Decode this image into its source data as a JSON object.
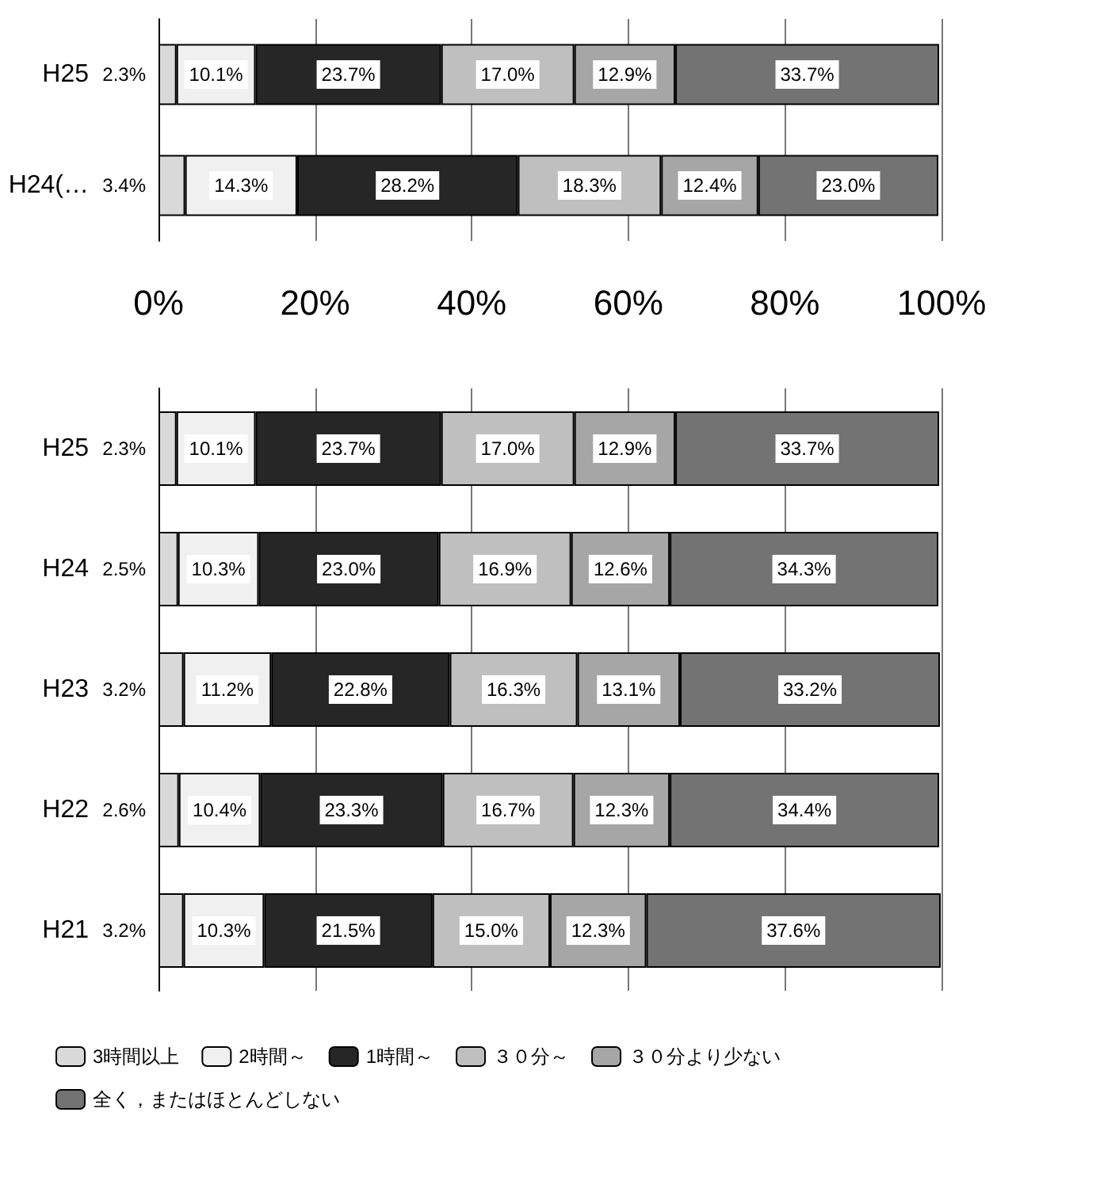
{
  "chart_data": [
    {
      "type": "bar",
      "orientation": "horizontal",
      "stacked": true,
      "categories": [
        "H25",
        "H24(…"
      ],
      "series": [
        {
          "color": "#d9d9d9",
          "values": [
            2.3,
            3.4
          ],
          "value_labels": [
            "2.3%",
            "3.4%"
          ]
        },
        {
          "color": "#f0f0f0",
          "values": [
            10.1,
            14.3
          ],
          "value_labels": [
            "10.1%",
            "14.3%"
          ]
        },
        {
          "color": "#262626",
          "values": [
            23.7,
            28.2
          ],
          "value_labels": [
            "23.7%",
            "28.2%"
          ]
        },
        {
          "color": "#bfbfbf",
          "values": [
            17.0,
            18.3
          ],
          "value_labels": [
            "17.0%",
            "18.3%"
          ]
        },
        {
          "color": "#a6a6a6",
          "values": [
            12.9,
            12.4
          ],
          "value_labels": [
            "12.9%",
            "12.4%"
          ]
        },
        {
          "color": "#737373",
          "values": [
            33.7,
            23.0
          ],
          "value_labels": [
            "33.7%",
            "23.0%"
          ]
        }
      ],
      "xlim": [
        0,
        100
      ],
      "xticks": [
        {
          "value": 0,
          "label": "0%"
        },
        {
          "value": 20,
          "label": "20%"
        },
        {
          "value": 40,
          "label": "40%"
        },
        {
          "value": 60,
          "label": "60%"
        },
        {
          "value": 80,
          "label": "80%"
        },
        {
          "value": 100,
          "label": "100%"
        }
      ],
      "grid": "x",
      "legend": false
    },
    {
      "type": "bar",
      "orientation": "horizontal",
      "stacked": true,
      "categories": [
        "H25",
        "H24",
        "H23",
        "H22",
        "H21"
      ],
      "series": [
        {
          "name": "3時間以上",
          "color": "#d9d9d9",
          "values": [
            2.3,
            2.5,
            3.2,
            2.6,
            3.2
          ],
          "value_labels": [
            "2.3%",
            "2.5%",
            "3.2%",
            "2.6%",
            "3.2%"
          ]
        },
        {
          "name": "2時間～",
          "color": "#f0f0f0",
          "values": [
            10.1,
            10.3,
            11.2,
            10.4,
            10.3
          ],
          "value_labels": [
            "10.1%",
            "10.3%",
            "11.2%",
            "10.4%",
            "10.3%"
          ]
        },
        {
          "name": "1時間～",
          "color": "#262626",
          "values": [
            23.7,
            23.0,
            22.8,
            23.3,
            21.5
          ],
          "value_labels": [
            "23.7%",
            "23.0%",
            "22.8%",
            "23.3%",
            "21.5%"
          ]
        },
        {
          "name": "３０分～",
          "color": "#bfbfbf",
          "values": [
            17.0,
            16.9,
            16.3,
            16.7,
            15.0
          ],
          "value_labels": [
            "17.0%",
            "16.9%",
            "16.3%",
            "16.7%",
            "15.0%"
          ]
        },
        {
          "name": "３０分より少ない",
          "color": "#a6a6a6",
          "values": [
            12.9,
            12.6,
            13.1,
            12.3,
            12.3
          ],
          "value_labels": [
            "12.9%",
            "12.6%",
            "13.1%",
            "12.3%",
            "12.3%"
          ]
        },
        {
          "name": "全く，またはほとんどしない",
          "color": "#737373",
          "values": [
            33.7,
            34.3,
            33.2,
            34.4,
            37.6
          ],
          "value_labels": [
            "33.7%",
            "34.3%",
            "33.2%",
            "34.4%",
            "37.6%"
          ]
        }
      ],
      "xlim": [
        0,
        100
      ],
      "xticks": [
        {
          "value": 0,
          "label": null
        },
        {
          "value": 20,
          "label": null
        },
        {
          "value": 40,
          "label": null
        },
        {
          "value": 60,
          "label": null
        },
        {
          "value": 80,
          "label": null
        },
        {
          "value": 100,
          "label": null
        }
      ],
      "tick_labels": "y",
      "grid": "x",
      "legend": "bottom"
    }
  ]
}
